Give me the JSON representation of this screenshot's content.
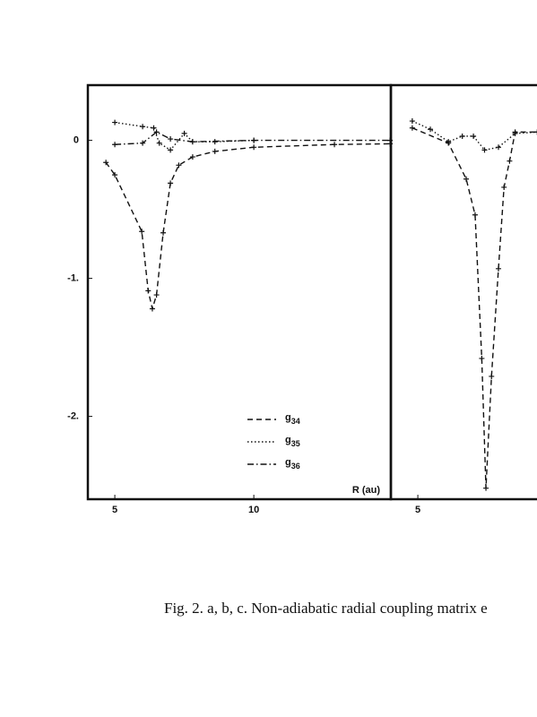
{
  "chart_data": [
    {
      "type": "line",
      "xlabel": "R (au)",
      "xlim": [
        4.03,
        14.93
      ],
      "ylim": [
        -2.6,
        0.4
      ],
      "xticks": [
        5,
        10
      ],
      "yticks": [
        0,
        {
          "value": -1,
          "label": "-1."
        },
        {
          "value": -2,
          "label": "-2."
        }
      ],
      "marker": "+",
      "legend": "lower right",
      "series": [
        {
          "name": "g34",
          "color": "#111111",
          "style": "dashed",
          "x": [
            4.68,
            5,
            5.97,
            6.2,
            6.35,
            6.5,
            6.74,
            7,
            7.3,
            7.8,
            8.6,
            10,
            12.9,
            14.9
          ],
          "values": [
            -0.16,
            -0.25,
            -0.66,
            -1.09,
            -1.22,
            -1.12,
            -0.67,
            -0.31,
            -0.18,
            -0.12,
            -0.08,
            -0.05,
            -0.03,
            -0.025
          ]
        },
        {
          "name": "g35",
          "color": "#111111",
          "style": "dotted",
          "x": [
            5,
            6,
            6.4,
            6.6,
            7,
            7.5,
            7.8,
            8.6,
            10
          ],
          "values": [
            0.13,
            0.1,
            0.09,
            -0.02,
            -0.07,
            0.05,
            -0.01,
            -0.01,
            0
          ]
        },
        {
          "name": "g36",
          "color": "#111111",
          "style": "dashdot",
          "x": [
            5,
            6,
            6.5,
            7,
            7.8,
            10,
            14.9
          ],
          "values": [
            -0.03,
            -0.02,
            0.06,
            0.01,
            -0.01,
            0,
            0
          ]
        }
      ]
    },
    {
      "type": "line",
      "xlim": [
        4.03,
        14.93
      ],
      "ylim": [
        -2.6,
        0.4
      ],
      "xticks": [
        5
      ],
      "marker": "+",
      "series": [
        {
          "color": "#111111",
          "style": "dashed",
          "x": [
            4.8,
            6.1,
            6.74,
            7.06,
            7.3,
            7.45,
            7.65,
            7.9,
            8.1,
            8.3,
            8.5,
            9.3
          ],
          "values": [
            0.09,
            -0.02,
            -0.28,
            -0.54,
            -1.58,
            -2.52,
            -1.71,
            -0.93,
            -0.34,
            -0.15,
            0.06,
            0.06
          ]
        },
        {
          "color": "#111111",
          "style": "dotted",
          "x": [
            4.8,
            5.45,
            6.1,
            6.6,
            7.0,
            7.4,
            7.9,
            8.5,
            9.3
          ],
          "values": [
            0.14,
            0.08,
            -0.01,
            0.03,
            0.03,
            -0.07,
            -0.05,
            0.05,
            0.06
          ]
        }
      ]
    }
  ],
  "caption": "Fig. 2. a, b, c. Non-adiabatic radial coupling matrix e"
}
